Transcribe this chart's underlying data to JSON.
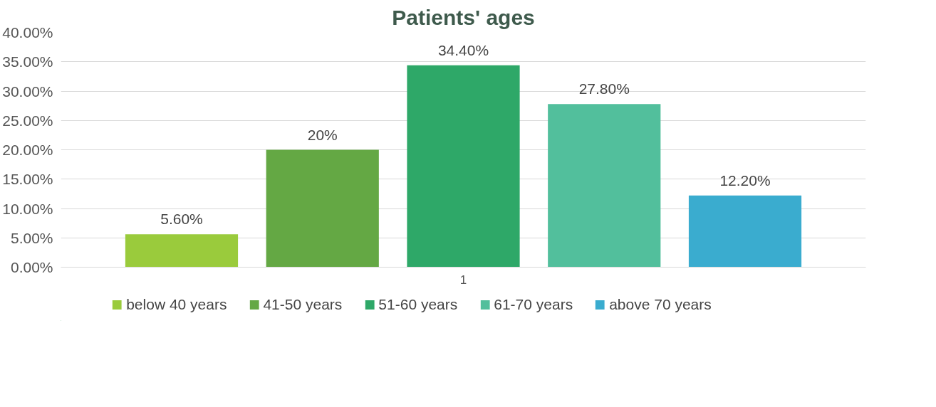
{
  "chart_data": {
    "type": "bar",
    "title": "Patients' ages",
    "categories": [
      "1"
    ],
    "series": [
      {
        "name": "below 40 years",
        "color": "#9acb3c",
        "values": [
          5.6
        ]
      },
      {
        "name": "41-50 years",
        "color": "#64a844",
        "values": [
          20
        ]
      },
      {
        "name": "51-60 years",
        "color": "#2ea868",
        "values": [
          34.4
        ]
      },
      {
        "name": "61-70 years",
        "color": "#52bf9c",
        "values": [
          27.8
        ]
      },
      {
        "name": "above 70 years",
        "color": "#3aaccf",
        "values": [
          12.2
        ]
      }
    ],
    "value_labels": [
      [
        "5.60%"
      ],
      [
        "20%"
      ],
      [
        "34.40%"
      ],
      [
        "27.80%"
      ],
      [
        "12.20%"
      ]
    ],
    "ylim": [
      0,
      40
    ],
    "yticks": [
      {
        "value": 0,
        "label": "0.00%"
      },
      {
        "value": 5,
        "label": "5.00%"
      },
      {
        "value": 10,
        "label": "10.00%"
      },
      {
        "value": 15,
        "label": "15.00%"
      },
      {
        "value": 20,
        "label": "20.00%"
      },
      {
        "value": 25,
        "label": "25.00%"
      },
      {
        "value": 30,
        "label": "30.00%"
      },
      {
        "value": 35,
        "label": "35.00%"
      },
      {
        "value": 40,
        "label": "40.00%"
      }
    ],
    "grid": "y",
    "legend": "bottom"
  }
}
